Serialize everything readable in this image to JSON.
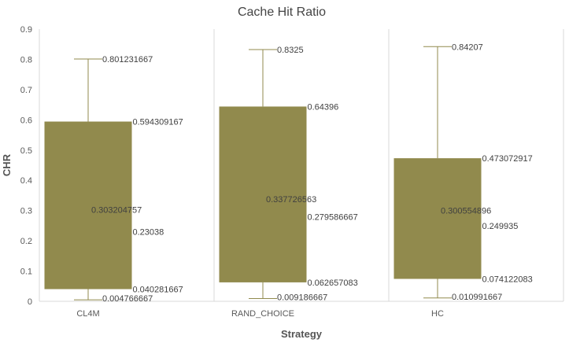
{
  "chart_data": {
    "type": "box",
    "title": "Cache Hit Ratio",
    "xlabel": "Strategy",
    "ylabel": "CHR",
    "ylim": [
      0,
      0.9
    ],
    "yticks": [
      "0",
      "0.1",
      "0.2",
      "0.3",
      "0.4",
      "0.5",
      "0.6",
      "0.7",
      "0.8",
      "0.9"
    ],
    "grid": "vertical",
    "box_color": "#918a4d",
    "whisker_color": "#918a4d",
    "categories": [
      "CL4M",
      "RAND_CHOICE",
      "HC"
    ],
    "boxes": [
      {
        "category": "CL4M",
        "min": 0.004766667,
        "q1": 0.040281667,
        "median": 0.23038,
        "mean": 0.303204757,
        "q3": 0.594309167,
        "max": 0.801231667,
        "labels": {
          "min": "0.004766667",
          "q1": "0.040281667",
          "median": "0.23038",
          "mean": "0.303204757",
          "q3": "0.594309167",
          "max": "0.801231667"
        }
      },
      {
        "category": "RAND_CHOICE",
        "min": 0.009186667,
        "q1": 0.062657083,
        "median": 0.279586667,
        "mean": 0.337726563,
        "q3": 0.64396,
        "max": 0.8325,
        "labels": {
          "min": "0.009186667",
          "q1": "0.062657083",
          "median": "0.279586667",
          "mean": "0.337726563",
          "q3": "0.64396",
          "max": "0.8325"
        }
      },
      {
        "category": "HC",
        "min": 0.010991667,
        "q1": 0.074122083,
        "median": 0.249935,
        "mean": 0.300554896,
        "q3": 0.473072917,
        "max": 0.84207,
        "labels": {
          "min": "0.010991667",
          "q1": "0.074122083",
          "median": "0.249935",
          "mean": "0.300554896",
          "q3": "0.473072917",
          "max": "0.84207"
        }
      }
    ]
  }
}
